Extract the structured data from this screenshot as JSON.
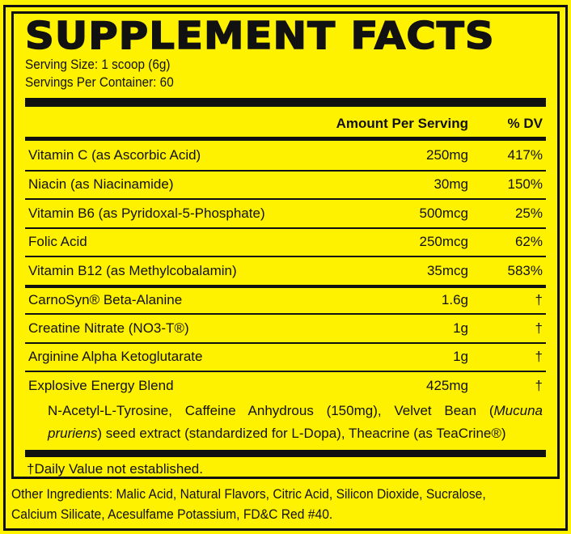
{
  "title": "SUPPLEMENT FACTS",
  "serving_size": "Serving Size: 1 scoop (6g)",
  "servings_per_container": "Servings Per Container: 60",
  "header": {
    "amount": "Amount Per Serving",
    "dv": "% DV"
  },
  "rows": [
    {
      "name": "Vitamin C (as Ascorbic Acid)",
      "amount": "250mg",
      "dv": "417%"
    },
    {
      "name": "Niacin (as Niacinamide)",
      "amount": "30mg",
      "dv": "150%"
    },
    {
      "name": "Vitamin B6 (as Pyridoxal-5-Phosphate)",
      "amount": "500mcg",
      "dv": "25%"
    },
    {
      "name": "Folic Acid",
      "amount": "250mcg",
      "dv": "62%"
    },
    {
      "name": "Vitamin B12 (as Methylcobalamin)",
      "amount": "35mcg",
      "dv": "583%"
    },
    {
      "name": "CarnoSyn® Beta-Alanine",
      "amount": "1.6g",
      "dv": "†"
    },
    {
      "name": "Creatine Nitrate (NO3-T®)",
      "amount": "1g",
      "dv": "†"
    },
    {
      "name": "Arginine Alpha Ketoglutarate",
      "amount": "1g",
      "dv": "†"
    },
    {
      "name": "Explosive Energy Blend",
      "amount": "425mg",
      "dv": "†"
    }
  ],
  "blend": {
    "part1": "N-Acetyl-L-Tyrosine, Caffeine Anhydrous (150mg), Velvet Bean (",
    "italic": "Mucuna pruriens",
    "part2": ") seed extract (standardized for L-Dopa), Theacrine (as TeaCrine®)"
  },
  "footnote": "†Daily Value not established.",
  "other_ingredients": {
    "line1": "Other Ingredients: Malic Acid, Natural Flavors, Citric Acid, Silicon Dioxide, Sucralose,",
    "line2": "Calcium Silicate, Acesulfame Potassium, FD&C Red #40."
  },
  "colors": {
    "background": "#fff200",
    "ink": "#111111"
  }
}
